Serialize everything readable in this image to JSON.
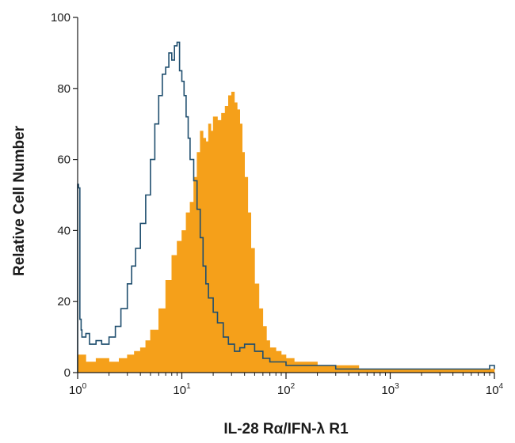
{
  "chart_data": {
    "type": "area",
    "title": "",
    "xlabel": "IL-28 Rα/IFN-λ R1",
    "ylabel": "Relative Cell Number",
    "xscale": "log",
    "xlim": [
      1,
      10000
    ],
    "ylim": [
      0,
      100
    ],
    "grid": false,
    "legend": "none",
    "yticks": [
      0,
      20,
      40,
      60,
      80,
      100
    ],
    "ytick_labels": [
      "0",
      "20",
      "40",
      "60",
      "80",
      "100"
    ],
    "xticks": [
      1,
      10,
      100,
      1000,
      10000
    ],
    "xtick_labels": [
      {
        "base": "10",
        "exp": "0"
      },
      {
        "base": "10",
        "exp": "1"
      },
      {
        "base": "10",
        "exp": "2"
      },
      {
        "base": "10",
        "exp": "3"
      },
      {
        "base": "10",
        "exp": "4"
      }
    ],
    "series": [
      {
        "style": "filled",
        "color": "#f5a01a",
        "x": [
          1,
          1.2,
          1.5,
          2,
          2.5,
          3,
          3.5,
          4,
          4.5,
          5,
          6,
          7,
          8,
          9,
          10,
          11,
          12,
          13,
          14,
          15,
          16,
          17,
          18,
          19,
          20,
          22,
          24,
          26,
          28,
          30,
          32,
          34,
          36,
          38,
          40,
          43,
          46,
          50,
          55,
          60,
          65,
          70,
          80,
          90,
          100,
          120,
          150,
          200,
          300,
          500,
          1000,
          2000,
          5000,
          10000
        ],
        "y": [
          5,
          3,
          4,
          3,
          4,
          5,
          6,
          7,
          9,
          12,
          18,
          26,
          33,
          37,
          40,
          45,
          48,
          55,
          62,
          68,
          66,
          65,
          70,
          68,
          72,
          71,
          73,
          75,
          78,
          79,
          76,
          74,
          70,
          62,
          55,
          45,
          35,
          25,
          18,
          13,
          9,
          7,
          6,
          5,
          4,
          3,
          3,
          2,
          2,
          1,
          1,
          1,
          1,
          0
        ]
      },
      {
        "style": "outline",
        "color": "#1f4e6e",
        "x": [
          1,
          1.02,
          1.05,
          1.08,
          1.1,
          1.2,
          1.3,
          1.5,
          1.7,
          2,
          2.3,
          2.6,
          3,
          3.3,
          3.6,
          4,
          4.5,
          5,
          5.5,
          6,
          6.5,
          7,
          7.5,
          8,
          8.5,
          9,
          9.5,
          10,
          10.5,
          11,
          11.5,
          12,
          13,
          14,
          15,
          16,
          17,
          18,
          20,
          22,
          25,
          28,
          32,
          36,
          40,
          50,
          60,
          70,
          80,
          100,
          150,
          200,
          300,
          500,
          1000,
          2000,
          5000,
          9000,
          10000
        ],
        "y": [
          53,
          52,
          15,
          12,
          10,
          11,
          8,
          9,
          8,
          10,
          13,
          18,
          25,
          30,
          35,
          42,
          50,
          60,
          70,
          78,
          84,
          86,
          90,
          88,
          92,
          93,
          85,
          82,
          78,
          72,
          66,
          60,
          54,
          46,
          38,
          30,
          25,
          21,
          17,
          14,
          10,
          8,
          6,
          7,
          8,
          6,
          4,
          3,
          3,
          2,
          2,
          2,
          1,
          1,
          1,
          1,
          1,
          2,
          1
        ]
      }
    ]
  }
}
